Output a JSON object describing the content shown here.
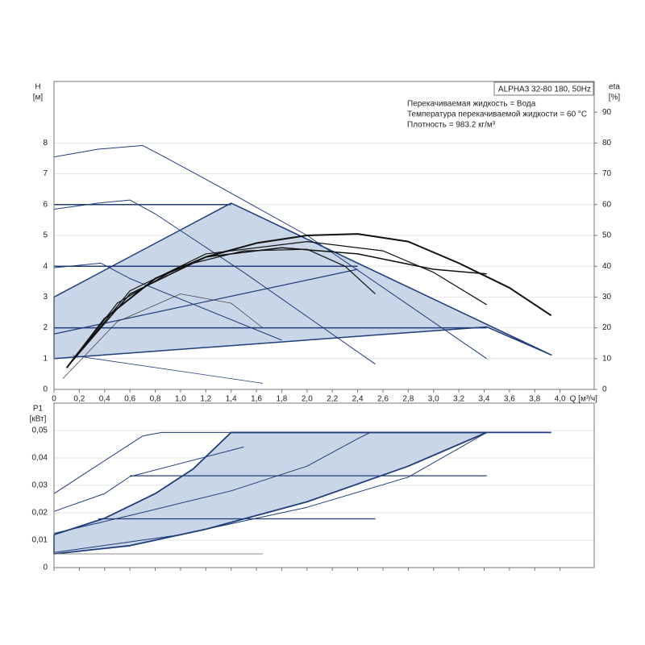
{
  "chart_data": [
    {
      "type": "line",
      "title": "ALPHA3 32-80 180, 50Hz",
      "notes": [
        "Перекачиваемая жидкость = Вода",
        "Температура перекачиваемой жидкости = 60 °C",
        "Плотность = 983.2 кг/м³"
      ],
      "ylabel": "H",
      "yunit": "[м]",
      "y2label": "eta",
      "y2unit": "[%]",
      "xlabel": "Q [м³/ч]",
      "xlim": [
        0,
        4.27
      ],
      "ylim": [
        0,
        10
      ],
      "y2lim": [
        0,
        100
      ],
      "xticks": [
        0,
        {
          "value": 0.2,
          "label": "0,2"
        },
        {
          "value": 0.4,
          "label": "0,4"
        },
        {
          "value": 0.6,
          "label": "0,6"
        },
        {
          "value": 0.8,
          "label": "0,8"
        },
        {
          "value": 1.0,
          "label": "1,0"
        },
        {
          "value": 1.2,
          "label": "1,2"
        },
        {
          "value": 1.4,
          "label": "1,4"
        },
        {
          "value": 1.6,
          "label": "1,6"
        },
        {
          "value": 1.8,
          "label": "1,8"
        },
        {
          "value": 2.0,
          "label": "2,0"
        },
        {
          "value": 2.2,
          "label": "2,2"
        },
        {
          "value": 2.4,
          "label": "2,4"
        },
        {
          "value": 2.6,
          "label": "2,6"
        },
        {
          "value": 2.8,
          "label": "2,8"
        },
        {
          "value": 3.0,
          "label": "3,0"
        },
        {
          "value": 3.2,
          "label": "3,2"
        },
        {
          "value": 3.4,
          "label": "3,4"
        },
        {
          "value": 3.6,
          "label": "3,6"
        },
        {
          "value": 3.8,
          "label": "3,8"
        },
        {
          "value": 4.0,
          "label": "4,0"
        }
      ],
      "yticks": [
        0,
        1,
        2,
        3,
        4,
        5,
        6,
        7,
        8
      ],
      "y2ticks": [
        0,
        10,
        20,
        30,
        40,
        50,
        60,
        70,
        80,
        90
      ],
      "grid": true,
      "show_xtick_labels": true,
      "series": [
        {
          "color": "#1f3d7a",
          "fill": "#c9d6e8",
          "width": 1.5,
          "x": [
            0,
            0,
            1.4,
            3.93,
            3.42
          ],
          "values": [
            1,
            3,
            6.05,
            1.12,
            2.03
          ]
        },
        {
          "color": "#1f3d7a",
          "width": 1,
          "x": [
            0,
            0.35,
            0.7,
            0.85,
            1.3,
            2.0,
            3.42
          ],
          "values": [
            7.55,
            7.8,
            7.92,
            7.6,
            6.6,
            5.0,
            1.0
          ]
        },
        {
          "color": "#1f3d7a",
          "width": 1,
          "x": [
            0,
            0.35,
            0.6,
            0.8,
            1.5,
            2.54
          ],
          "values": [
            5.85,
            6.05,
            6.15,
            5.7,
            3.8,
            0.82
          ]
        },
        {
          "color": "#1f3d7a",
          "width": 1,
          "x": [
            0,
            0.37,
            0.6,
            1.8
          ],
          "values": [
            3.95,
            4.1,
            3.6,
            1.6
          ]
        },
        {
          "color": "#1f3d7a",
          "width": 0.8,
          "x": [
            0.15,
            1.65
          ],
          "values": [
            1.1,
            0.2
          ]
        },
        {
          "color": "#1f3d7a",
          "width": 1.5,
          "x": [
            0,
            1.4
          ],
          "values": [
            6,
            6
          ]
        },
        {
          "color": "#1f3d7a",
          "width": 1.5,
          "x": [
            0,
            2.4
          ],
          "values": [
            4,
            4
          ]
        },
        {
          "color": "#1f3d7a",
          "width": 1.5,
          "x": [
            0,
            3.42
          ],
          "values": [
            2,
            2
          ]
        },
        {
          "color": "#1f3d7a",
          "width": 1.2,
          "x": [
            0,
            2.4
          ],
          "values": [
            1.8,
            3.9
          ]
        },
        {
          "color": "#111111",
          "width": 2,
          "axis": "y2",
          "x": [
            0.1,
            0.4,
            0.8,
            1.2,
            1.6,
            2.0,
            2.4,
            2.8,
            3.2,
            3.6,
            3.93
          ],
          "values": [
            7,
            23,
            36,
            43,
            47.5,
            50,
            50.5,
            48,
            41,
            33,
            24
          ]
        },
        {
          "color": "#111111",
          "width": 1.2,
          "axis": "y2",
          "x": [
            0.12,
            0.5,
            1.0,
            1.5,
            2.0,
            2.3,
            2.54
          ],
          "values": [
            8,
            28,
            40,
            45,
            45.5,
            40,
            31
          ]
        },
        {
          "color": "#111111",
          "width": 1.5,
          "axis": "y2",
          "x": [
            0.14,
            0.6,
            1.2,
            1.8,
            2.4,
            3.0,
            3.42
          ],
          "values": [
            9,
            31,
            43,
            46,
            44,
            39,
            37.5
          ]
        },
        {
          "color": "#111111",
          "width": 1.2,
          "axis": "y2",
          "x": [
            0.14,
            0.6,
            1.2,
            2.0,
            2.6,
            3.0,
            3.42
          ],
          "values": [
            9,
            32,
            44,
            48,
            45,
            38,
            27.5
          ]
        },
        {
          "color": "#333333",
          "width": 0.7,
          "axis": "y2",
          "x": [
            0.07,
            0.5,
            1.0,
            1.4,
            1.65
          ],
          "values": [
            3.5,
            22,
            31,
            28,
            20
          ]
        }
      ]
    },
    {
      "type": "line",
      "ylabel": "P1",
      "yunit": "[кВт]",
      "xlim": [
        0,
        4.27
      ],
      "ylim": [
        0,
        0.06
      ],
      "xticks": [
        0,
        0.2,
        0.4,
        0.6,
        0.8,
        1.0,
        1.2,
        1.4,
        1.6,
        1.8,
        2.0,
        2.2,
        2.4,
        2.6,
        2.8,
        3.0,
        3.2,
        3.4,
        3.6,
        3.8,
        4.0
      ],
      "yticks": [
        0,
        {
          "value": 0.01,
          "label": "0,01"
        },
        {
          "value": 0.02,
          "label": "0,02"
        },
        {
          "value": 0.03,
          "label": "0,03"
        },
        {
          "value": 0.04,
          "label": "0,04"
        },
        {
          "value": 0.05,
          "label": "0,05"
        }
      ],
      "grid": true,
      "show_xtick_labels": false,
      "series": [
        {
          "color": "#1f3d7a",
          "fill": "#c9d6e8",
          "width": 1.8,
          "x": [
            0,
            0.4,
            0.8,
            1.1,
            1.4,
            3.42,
            2.8,
            2.0,
            1.2,
            0.6,
            0
          ],
          "values": [
            0.012,
            0.018,
            0.027,
            0.036,
            0.0493,
            0.0493,
            0.037,
            0.024,
            0.014,
            0.008,
            0.005
          ]
        },
        {
          "color": "#1f3d7a",
          "width": 1,
          "x": [
            0,
            0.3,
            0.7,
            0.85,
            1.4
          ],
          "values": [
            0.027,
            0.036,
            0.048,
            0.0493,
            0.0493
          ]
        },
        {
          "color": "#1f3d7a",
          "width": 1.8,
          "x": [
            1.4,
            3.93
          ],
          "values": [
            0.0493,
            0.0493
          ]
        },
        {
          "color": "#1f3d7a",
          "width": 1,
          "x": [
            0,
            0.4,
            0.6,
            1.0,
            1.5
          ],
          "values": [
            0.0205,
            0.027,
            0.0332,
            0.038,
            0.044
          ]
        },
        {
          "color": "#1f3d7a",
          "width": 1,
          "x": [
            0,
            0.6,
            1.4,
            2.0,
            2.4,
            2.5
          ],
          "values": [
            0.0125,
            0.019,
            0.028,
            0.037,
            0.047,
            0.0493
          ]
        },
        {
          "color": "#1f3d7a",
          "width": 1,
          "x": [
            0,
            1.0,
            2.0,
            2.8,
            3.42
          ],
          "values": [
            0.0055,
            0.012,
            0.022,
            0.033,
            0.0493
          ]
        },
        {
          "color": "#1f3d7a",
          "width": 1.2,
          "x": [
            0.6,
            3.42
          ],
          "values": [
            0.0335,
            0.0335
          ]
        },
        {
          "color": "#1f3d7a",
          "width": 1.2,
          "x": [
            0.35,
            2.54
          ],
          "values": [
            0.0178,
            0.0178
          ]
        },
        {
          "color": "#888888",
          "width": 1,
          "x": [
            0,
            1.65
          ],
          "values": [
            0.005,
            0.005
          ]
        }
      ]
    }
  ]
}
